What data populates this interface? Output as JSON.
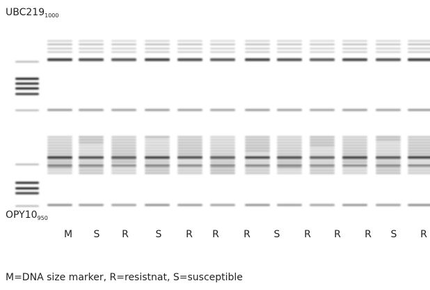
{
  "figure": {
    "top_label": {
      "text": "UBC219",
      "subscript": "1000"
    },
    "bottom_label": {
      "text": "OPY10",
      "subscript": "950"
    },
    "lanes": [
      "M",
      "S",
      "R",
      "S",
      "R",
      "R",
      "R",
      "S",
      "R",
      "R",
      "R",
      "S",
      "R"
    ],
    "caption": "M=DNA size marker, R=resistnat, S=susceptible"
  }
}
